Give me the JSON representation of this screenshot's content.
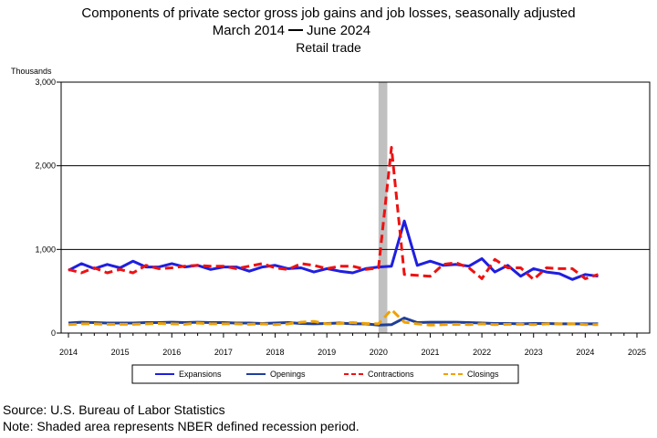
{
  "chart_data": {
    "type": "line",
    "title": "Components of private sector gross job gains and job losses, seasonally adjusted",
    "subtitle_start": "March 2014",
    "subtitle_end": "June 2024",
    "subtitle_sep_symbol": "solid-dash",
    "subtitle2": "Retail trade",
    "ylabel": "Thousands",
    "xlabel": "",
    "ylim": [
      0,
      3000
    ],
    "yticks": [
      0,
      1000,
      2000,
      3000
    ],
    "ytick_labels": [
      "0",
      "1,000",
      "2,000",
      "3,000"
    ],
    "xlim": [
      2014,
      2025
    ],
    "xticks": [
      2014,
      2015,
      2016,
      2017,
      2018,
      2019,
      2020,
      2021,
      2022,
      2023,
      2024,
      2025
    ],
    "xtick_labels": [
      "2014",
      "2015",
      "2016",
      "2017",
      "2018",
      "2019",
      "2020",
      "2021",
      "2022",
      "2023",
      "2024",
      "2025"
    ],
    "grid": "horizontal",
    "legend_position": "bottom",
    "recession_shading": {
      "start": 2020.0,
      "end": 2020.17,
      "color": "#c0c0c0"
    },
    "x": [
      2014.0,
      2014.25,
      2014.5,
      2014.75,
      2015.0,
      2015.25,
      2015.5,
      2015.75,
      2016.0,
      2016.25,
      2016.5,
      2016.75,
      2017.0,
      2017.25,
      2017.5,
      2017.75,
      2018.0,
      2018.25,
      2018.5,
      2018.75,
      2019.0,
      2019.25,
      2019.5,
      2019.75,
      2020.0,
      2020.25,
      2020.5,
      2020.75,
      2021.0,
      2021.25,
      2021.5,
      2021.75,
      2022.0,
      2022.25,
      2022.5,
      2022.75,
      2023.0,
      2023.25,
      2023.5,
      2023.75,
      2024.0,
      2024.25
    ],
    "series": [
      {
        "name": "Expansions",
        "color": "#1f1fe0",
        "style": "solid",
        "width": 3,
        "values": [
          750,
          830,
          770,
          820,
          780,
          860,
          790,
          790,
          830,
          790,
          810,
          760,
          790,
          790,
          740,
          790,
          810,
          770,
          780,
          730,
          770,
          740,
          720,
          770,
          790,
          800,
          1340,
          810,
          860,
          810,
          820,
          800,
          890,
          730,
          810,
          680,
          770,
          730,
          710,
          640,
          700,
          680
        ]
      },
      {
        "name": "Openings",
        "color": "#1f3f99",
        "style": "solid",
        "width": 3,
        "values": [
          120,
          130,
          125,
          120,
          120,
          120,
          125,
          125,
          130,
          125,
          130,
          125,
          125,
          120,
          120,
          115,
          120,
          125,
          115,
          110,
          115,
          120,
          110,
          110,
          95,
          100,
          180,
          125,
          130,
          130,
          130,
          125,
          120,
          115,
          115,
          110,
          115,
          115,
          110,
          110,
          110,
          110
        ]
      },
      {
        "name": "Contractions",
        "color": "#ee1111",
        "style": "dashed",
        "width": 3,
        "values": [
          760,
          720,
          780,
          720,
          760,
          720,
          810,
          770,
          780,
          800,
          810,
          800,
          800,
          770,
          800,
          830,
          780,
          760,
          830,
          810,
          770,
          800,
          800,
          760,
          780,
          2220,
          700,
          690,
          680,
          820,
          840,
          780,
          650,
          880,
          780,
          780,
          640,
          780,
          770,
          770,
          650,
          700
        ]
      },
      {
        "name": "Closings",
        "color": "#f0a000",
        "style": "dashed",
        "width": 3,
        "values": [
          100,
          110,
          110,
          105,
          105,
          105,
          110,
          115,
          110,
          105,
          120,
          110,
          110,
          110,
          105,
          110,
          100,
          110,
          130,
          140,
          110,
          115,
          125,
          115,
          110,
          280,
          130,
          110,
          95,
          100,
          105,
          100,
          110,
          100,
          105,
          105,
          100,
          110,
          110,
          110,
          100,
          100
        ]
      }
    ]
  },
  "footer": {
    "source": "Source: U.S. Bureau of Labor Statistics",
    "note": "Note: Shaded area represents NBER defined recession period."
  }
}
